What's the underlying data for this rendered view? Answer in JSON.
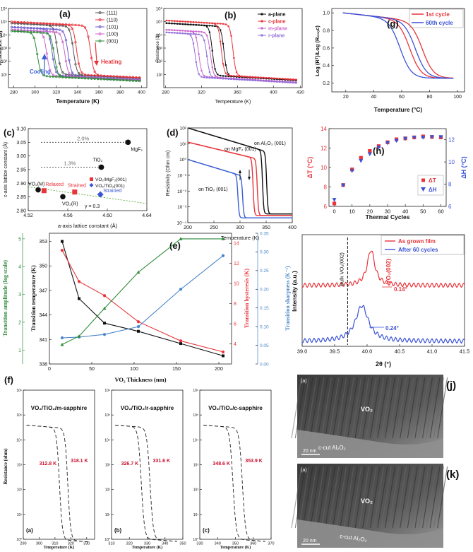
{
  "chart_data": [
    {
      "id": "a",
      "type": "line",
      "panel_label": "(a)",
      "xlabel": "Temperature (K)",
      "ylabel": "Resistance (Ω)",
      "xlim": [
        275,
        405
      ],
      "xticks": [
        "280",
        "300",
        "320",
        "340",
        "360",
        "380",
        "400"
      ],
      "xtick_values": [
        280,
        300,
        320,
        340,
        360,
        380,
        400
      ],
      "ylim_log": [
        0,
        6
      ],
      "yticks": [
        "10¹",
        "10²",
        "10³",
        "10⁴",
        "10⁵",
        "10⁶"
      ],
      "ytick_exp": [
        1,
        2,
        3,
        4,
        5,
        6
      ],
      "series": [
        {
          "name": "(111)",
          "color": "#555555",
          "heat_t": 336,
          "cool_t": 321,
          "hi": 4.9,
          "lo": 1.2
        },
        {
          "name": "(110)",
          "color": "#e8343a",
          "heat_t": 352,
          "cool_t": 339,
          "hi": 5.0,
          "lo": 1.25
        },
        {
          "name": "(101)",
          "color": "#6a5acd",
          "heat_t": 331,
          "cool_t": 316,
          "hi": 4.6,
          "lo": 1.1
        },
        {
          "name": "(100)",
          "color": "#cc66cc",
          "heat_t": 328,
          "cool_t": 311,
          "hi": 4.4,
          "lo": 1.05
        },
        {
          "name": "(001)",
          "color": "#2e8b3a",
          "heat_t": 318,
          "cool_t": 302,
          "hi": 4.3,
          "lo": 1.0
        }
      ],
      "annotations": {
        "heating": "Heating",
        "cooling": "Cooling"
      }
    },
    {
      "id": "b",
      "type": "line",
      "panel_label": "(b)",
      "xlabel": "Temperature (K)",
      "ylabel": "Resistance (Ω)",
      "xlim": [
        278,
        432
      ],
      "xticks": [
        "280",
        "320",
        "360",
        "400",
        "430"
      ],
      "xtick_values": [
        280,
        320,
        360,
        400,
        430
      ],
      "ylim_log": [
        0,
        6
      ],
      "yticks": [
        "10¹",
        "10²",
        "10³",
        "10⁴",
        "10⁵",
        "10⁶"
      ],
      "ytick_exp": [
        1,
        2,
        3,
        4,
        5,
        6
      ],
      "series": [
        {
          "name": "a-plane",
          "color": "#111111",
          "heat_t": 345,
          "cool_t": 332,
          "hi": 4.9,
          "lo": 1.15
        },
        {
          "name": "c-plane",
          "color": "#e8343a",
          "heat_t": 355,
          "cool_t": 342,
          "hi": 5.1,
          "lo": 1.2
        },
        {
          "name": "m-plane",
          "color": "#cc66cc",
          "heat_t": 330,
          "cool_t": 317,
          "hi": 4.4,
          "lo": 1.0
        },
        {
          "name": "r-plane",
          "color": "#9370db",
          "heat_t": 326,
          "cool_t": 313,
          "hi": 4.2,
          "lo": 0.95
        }
      ]
    },
    {
      "id": "g",
      "type": "line",
      "panel_label": "(g)",
      "xlabel": "Temperature (°C)",
      "ylabel": "Log (Rᵀ)/Log (R₂₀ₒc)",
      "xlim": [
        10,
        105
      ],
      "xticks": [
        "20",
        "40",
        "60",
        "80",
        "100"
      ],
      "xtick_values": [
        20,
        40,
        60,
        80,
        100
      ],
      "ylim": [
        0.1,
        1.05
      ],
      "yticks": [
        "0.2",
        "0.4",
        "0.6",
        "0.8",
        "1.0"
      ],
      "ytick_values": [
        0.2,
        0.4,
        0.6,
        0.8,
        1.0
      ],
      "series": [
        {
          "name": "1st cycle",
          "color": "#e8343a",
          "heat_t": 75,
          "cool_t": 66
        },
        {
          "name": "60th cycle",
          "color": "#3a52d6",
          "heat_t": 70,
          "cool_t": 59
        }
      ],
      "legend_sup": [
        "st",
        "th"
      ],
      "legend_main": [
        "1",
        "60"
      ],
      "legend_suffix": [
        " cycle",
        " cycle"
      ]
    },
    {
      "id": "c",
      "type": "scatter",
      "panel_label": "(c)",
      "xlabel": "a-axis lattice constant (Å)",
      "ylabel": "c-axis lattice constant (Å)",
      "xlim": [
        4.52,
        4.64
      ],
      "xticks": [
        "4.52",
        "4.56",
        "4.60",
        "4.64"
      ],
      "xtick_values": [
        4.52,
        4.56,
        4.6,
        4.64
      ],
      "ylim": [
        2.8,
        3.1
      ],
      "yticks": [
        "2.80",
        "2.85",
        "2.90",
        "2.95",
        "3.00",
        "3.05",
        "3.10"
      ],
      "ytick_values": [
        2.8,
        2.85,
        2.9,
        2.95,
        3.0,
        3.05,
        3.1
      ],
      "points": [
        {
          "label": "MgF₂",
          "x": 4.621,
          "y": 3.05,
          "marker": "black"
        },
        {
          "label": "TiO₂",
          "x": 4.594,
          "y": 2.959,
          "marker": "black"
        },
        {
          "label": "VO₂(M)",
          "x": 4.53,
          "y": 2.876,
          "marker": "black"
        },
        {
          "label": "VO₂(R)",
          "x": 4.555,
          "y": 2.851,
          "marker": "black"
        },
        {
          "label": "Relaxed",
          "x": 4.536,
          "y": 2.873,
          "marker": "red"
        },
        {
          "label": "Strained",
          "x": 4.567,
          "y": 2.868,
          "marker": "red"
        },
        {
          "label": "Strained",
          "x": 4.593,
          "y": 2.859,
          "marker": "blue"
        }
      ],
      "arrows": [
        {
          "text": "2.0%",
          "x0": 4.53,
          "x1": 4.621,
          "y": 3.05
        },
        {
          "text": "1.3%",
          "x0": 4.53,
          "x1": 4.594,
          "y": 2.959
        }
      ],
      "legend": [
        "VO₂/MgF₂(001)",
        "VO₂/TiO₂(001)"
      ],
      "fit_label": "γ = 0.3"
    },
    {
      "id": "d",
      "type": "line",
      "panel_label": "(d)",
      "xlabel": "Temperature (K)",
      "ylabel": "Resistivity (Ohm cm)",
      "xlim": [
        200,
        400
      ],
      "xticks": [
        "200",
        "250",
        "300",
        "350",
        "400"
      ],
      "xtick_values": [
        200,
        250,
        300,
        350,
        400
      ],
      "ylim_log": [
        -4,
        2
      ],
      "yticks": [
        "10⁻⁴",
        "10⁻³",
        "10⁻²",
        "10⁻¹",
        "10⁰",
        "10¹",
        "10²"
      ],
      "ytick_exp": [
        -4,
        -3,
        -2,
        -1,
        0,
        1,
        2
      ],
      "series": [
        {
          "name": "on MgF₂ (001)",
          "color": "#111111",
          "heat_t": 351,
          "cool_t": 343,
          "start": 2.0,
          "slope": 0.01,
          "lo": -3.45
        },
        {
          "name": "on Al₂O₃ (001)",
          "color": "#e8343a",
          "heat_t": 333,
          "cool_t": 325,
          "start": 1.1,
          "slope": 0.008,
          "lo": -3.55
        },
        {
          "name": "on TiO₂ (001)",
          "color": "#3a5fd6",
          "heat_t": 305,
          "cool_t": 296,
          "start": 0.0,
          "slope": 0.01,
          "lo": -3.7
        }
      ]
    },
    {
      "id": "h",
      "type": "scatter",
      "panel_label": "(h)",
      "xlabel": "Thermal Cycles",
      "ylabel": "ΔT (°C)",
      "y2label": "ΔH (°C)",
      "x": [
        0,
        5,
        10,
        15,
        20,
        25,
        30,
        35,
        40,
        45,
        50,
        55,
        60
      ],
      "xticks": [
        "0",
        "10",
        "20",
        "30",
        "40",
        "50",
        "60"
      ],
      "xtick_values": [
        0,
        10,
        20,
        30,
        40,
        50,
        60
      ],
      "xlim": [
        -3,
        63
      ],
      "ylim": [
        6,
        14
      ],
      "yticks": [
        "6",
        "8",
        "10",
        "12",
        "14"
      ],
      "ytick_values": [
        6,
        8,
        10,
        12,
        14
      ],
      "y2lim": [
        6,
        13
      ],
      "y2ticks": [
        "6",
        "8",
        "10",
        "12"
      ],
      "y2tick_values": [
        6,
        8,
        10,
        12
      ],
      "series": [
        {
          "name": "ΔT",
          "color": "#e8343a",
          "marker": "square",
          "values": [
            6.3,
            8.2,
            9.8,
            11.0,
            11.7,
            12.2,
            12.6,
            12.9,
            13.0,
            13.1,
            13.2,
            13.15,
            13.1
          ]
        },
        {
          "name": "ΔH",
          "color": "#3a52d6",
          "marker": "triangle",
          "values": [
            6.6,
            7.9,
            9.2,
            10.1,
            10.7,
            11.3,
            11.7,
            11.9,
            12.1,
            12.2,
            12.2,
            12.25,
            12.25
          ]
        }
      ]
    },
    {
      "id": "e",
      "type": "line",
      "panel_label": "(e)",
      "xlabel": "VO₂ Thickness (nm)",
      "ylabel": "Transition temperature (K)",
      "y2label": "Transition hysteresis (K)",
      "y3label": "Transition sharpness (K⁻¹)",
      "y0label": "Transition amplitude (log scale)",
      "x": [
        15,
        35,
        65,
        105,
        155,
        205
      ],
      "xlim": [
        0,
        215
      ],
      "xticks": [
        "0",
        "50",
        "100",
        "150",
        "200"
      ],
      "xtick_values": [
        0,
        50,
        100,
        150,
        200
      ],
      "ylim": [
        338,
        354
      ],
      "yticks": [
        "338",
        "341",
        "344",
        "347",
        "350",
        "353"
      ],
      "ytick_values": [
        338,
        341,
        344,
        347,
        350,
        353
      ],
      "y2lim": [
        2,
        15
      ],
      "y2ticks": [
        "4",
        "6",
        "8",
        "10",
        "12",
        "14"
      ],
      "y2tick_values": [
        4,
        6,
        8,
        10,
        12,
        14
      ],
      "y3lim": [
        0,
        0.35
      ],
      "y3ticks": [
        "0.00",
        "0.05",
        "0.10",
        "0.15",
        "0.20",
        "0.25",
        "0.30",
        "0.35"
      ],
      "y3tick_values": [
        0,
        0.05,
        0.1,
        0.15,
        0.2,
        0.25,
        0.3,
        0.35
      ],
      "y0lim": [
        0.5,
        5.2
      ],
      "y0ticks": [
        "1",
        "2",
        "3",
        "4",
        "5"
      ],
      "y0tick_values": [
        1,
        2,
        3,
        4,
        5
      ],
      "series": [
        {
          "name": "Transition temperature",
          "axis": "y",
          "color": "#111111",
          "marker": "square",
          "values": [
            353,
            346,
            343,
            342,
            340.5,
            339
          ]
        },
        {
          "name": "Transition hysteresis",
          "axis": "y2",
          "color": "#e8343a",
          "marker": "circle",
          "values": [
            13.3,
            10.2,
            8.8,
            6.2,
            4.3,
            3.2
          ]
        },
        {
          "name": "Transition sharpness",
          "axis": "y3",
          "color": "#4a86c8",
          "marker": "circle",
          "values": [
            0.07,
            0.072,
            0.079,
            0.1,
            0.2,
            0.29
          ]
        },
        {
          "name": "Transition amplitude",
          "axis": "y0",
          "color": "#2e8b3a",
          "marker": "triangle",
          "values": [
            1.2,
            1.5,
            2.5,
            3.8,
            5.0,
            5.0
          ]
        }
      ]
    },
    {
      "id": "i",
      "type": "line",
      "panel_label": "(i)",
      "xlabel": "2θ (°)",
      "ylabel": "Intensity (a.u.)",
      "xlim": [
        39.0,
        41.5
      ],
      "xticks": [
        "39.0",
        "39.5",
        "40.0",
        "40.5",
        "41.0",
        "41.5"
      ],
      "xtick_values": [
        39.0,
        39.5,
        40.0,
        40.5,
        41.0,
        41.5
      ],
      "series": [
        {
          "name": "As grown film",
          "color": "#e8343a",
          "peak": 40.06,
          "fwhm": 0.14,
          "offset": 0.55
        },
        {
          "name": "After 60 cycles",
          "color": "#3a52d6",
          "peak": 39.92,
          "fwhm": 0.24,
          "offset": 0.0
        }
      ],
      "bulk_line": 39.7,
      "bulk_label": "Bulk VO₂(002)",
      "peak_label": "VO₂(002)",
      "fwhm_labels": [
        "0.14°",
        "0.24°"
      ]
    },
    {
      "id": "f",
      "type": "line",
      "panel_label": "(f)",
      "ylabel": "Resistance (ohm)",
      "xlabel": "Temperature (K)",
      "ylim_log": [
        0,
        6
      ],
      "yticks": [
        "10⁰",
        "10¹",
        "10²",
        "10³",
        "10⁴",
        "10⁵",
        "10⁶"
      ],
      "ytick_exp": [
        0,
        1,
        2,
        3,
        4,
        5,
        6
      ],
      "subplots": [
        {
          "title": "VO₂/TiO₂/m-sapphire",
          "tag": "(a)",
          "xlim": [
            290,
            335
          ],
          "xticks": [
            "290",
            "300",
            "310",
            "320",
            "330"
          ],
          "xtick_values": [
            290,
            300,
            310,
            320,
            330
          ],
          "cool_t": 312.8,
          "heat_t": 318.1,
          "cool_label": "312.8 K",
          "heat_label": "318.1 K"
        },
        {
          "title": "VO₂/TiO₂/r-sapphire",
          "tag": "(b)",
          "xlim": [
            310,
            350
          ],
          "xticks": [
            "310",
            "320",
            "330",
            "340",
            "350"
          ],
          "xtick_values": [
            310,
            320,
            330,
            340,
            350
          ],
          "cool_t": 326.7,
          "heat_t": 331.6,
          "cool_label": "326.7 K",
          "heat_label": "331.6 K"
        },
        {
          "title": "VO₂/TiO₂/c-sapphire",
          "tag": "(c)",
          "xlim": [
            330,
            370
          ],
          "xticks": [
            "330",
            "340",
            "350",
            "360",
            "370"
          ],
          "xtick_values": [
            330,
            340,
            350,
            360,
            370
          ],
          "cool_t": 348.6,
          "heat_t": 353.9,
          "cool_label": "348.6 K",
          "heat_label": "353.9 K"
        }
      ]
    }
  ],
  "tem": [
    {
      "panel_label": "(j)",
      "tag": "(a)",
      "film": "VO₂",
      "substrate": "c-cut Al₂O₃",
      "scale": "20 nm"
    },
    {
      "panel_label": "(k)",
      "tag": "(a)",
      "film": "VO₂",
      "substrate": "c-cut Al₂O₃",
      "scale": "20 nm"
    }
  ]
}
